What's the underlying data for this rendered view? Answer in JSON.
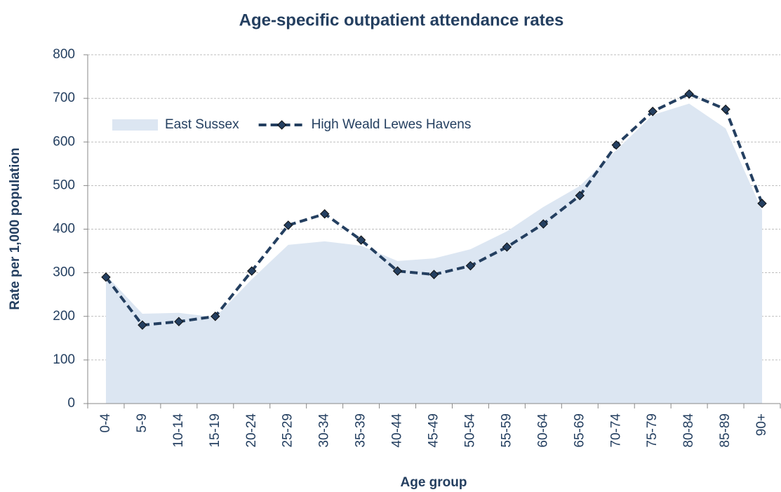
{
  "chart_data": {
    "type": "area_line",
    "title": "Age-specific outpatient attendance rates",
    "x_label": "Age group",
    "y_label": "Rate per 1,000 population",
    "categories": [
      "0-4",
      "5-9",
      "10-14",
      "15-19",
      "20-24",
      "25-29",
      "30-34",
      "35-39",
      "40-44",
      "45-49",
      "50-54",
      "55-59",
      "60-64",
      "65-69",
      "70-74",
      "75-79",
      "80-84",
      "85-89",
      "90+"
    ],
    "series": [
      {
        "name": "East Sussex",
        "type": "area",
        "color": "#dce6f2",
        "values": [
          295,
          206,
          208,
          198,
          285,
          364,
          372,
          362,
          327,
          333,
          354,
          395,
          451,
          499,
          581,
          662,
          688,
          631,
          443
        ]
      },
      {
        "name": "High Weald Lewes Havens",
        "type": "line",
        "color": "#243f60",
        "values": [
          290,
          180,
          188,
          200,
          304,
          409,
          435,
          375,
          304,
          296,
          316,
          359,
          412,
          477,
          593,
          670,
          710,
          675,
          459
        ]
      }
    ],
    "ylim": [
      0,
      800
    ],
    "yticks": [
      0,
      100,
      200,
      300,
      400,
      500,
      600,
      700,
      800
    ],
    "grid": true,
    "legend": "upper left"
  }
}
